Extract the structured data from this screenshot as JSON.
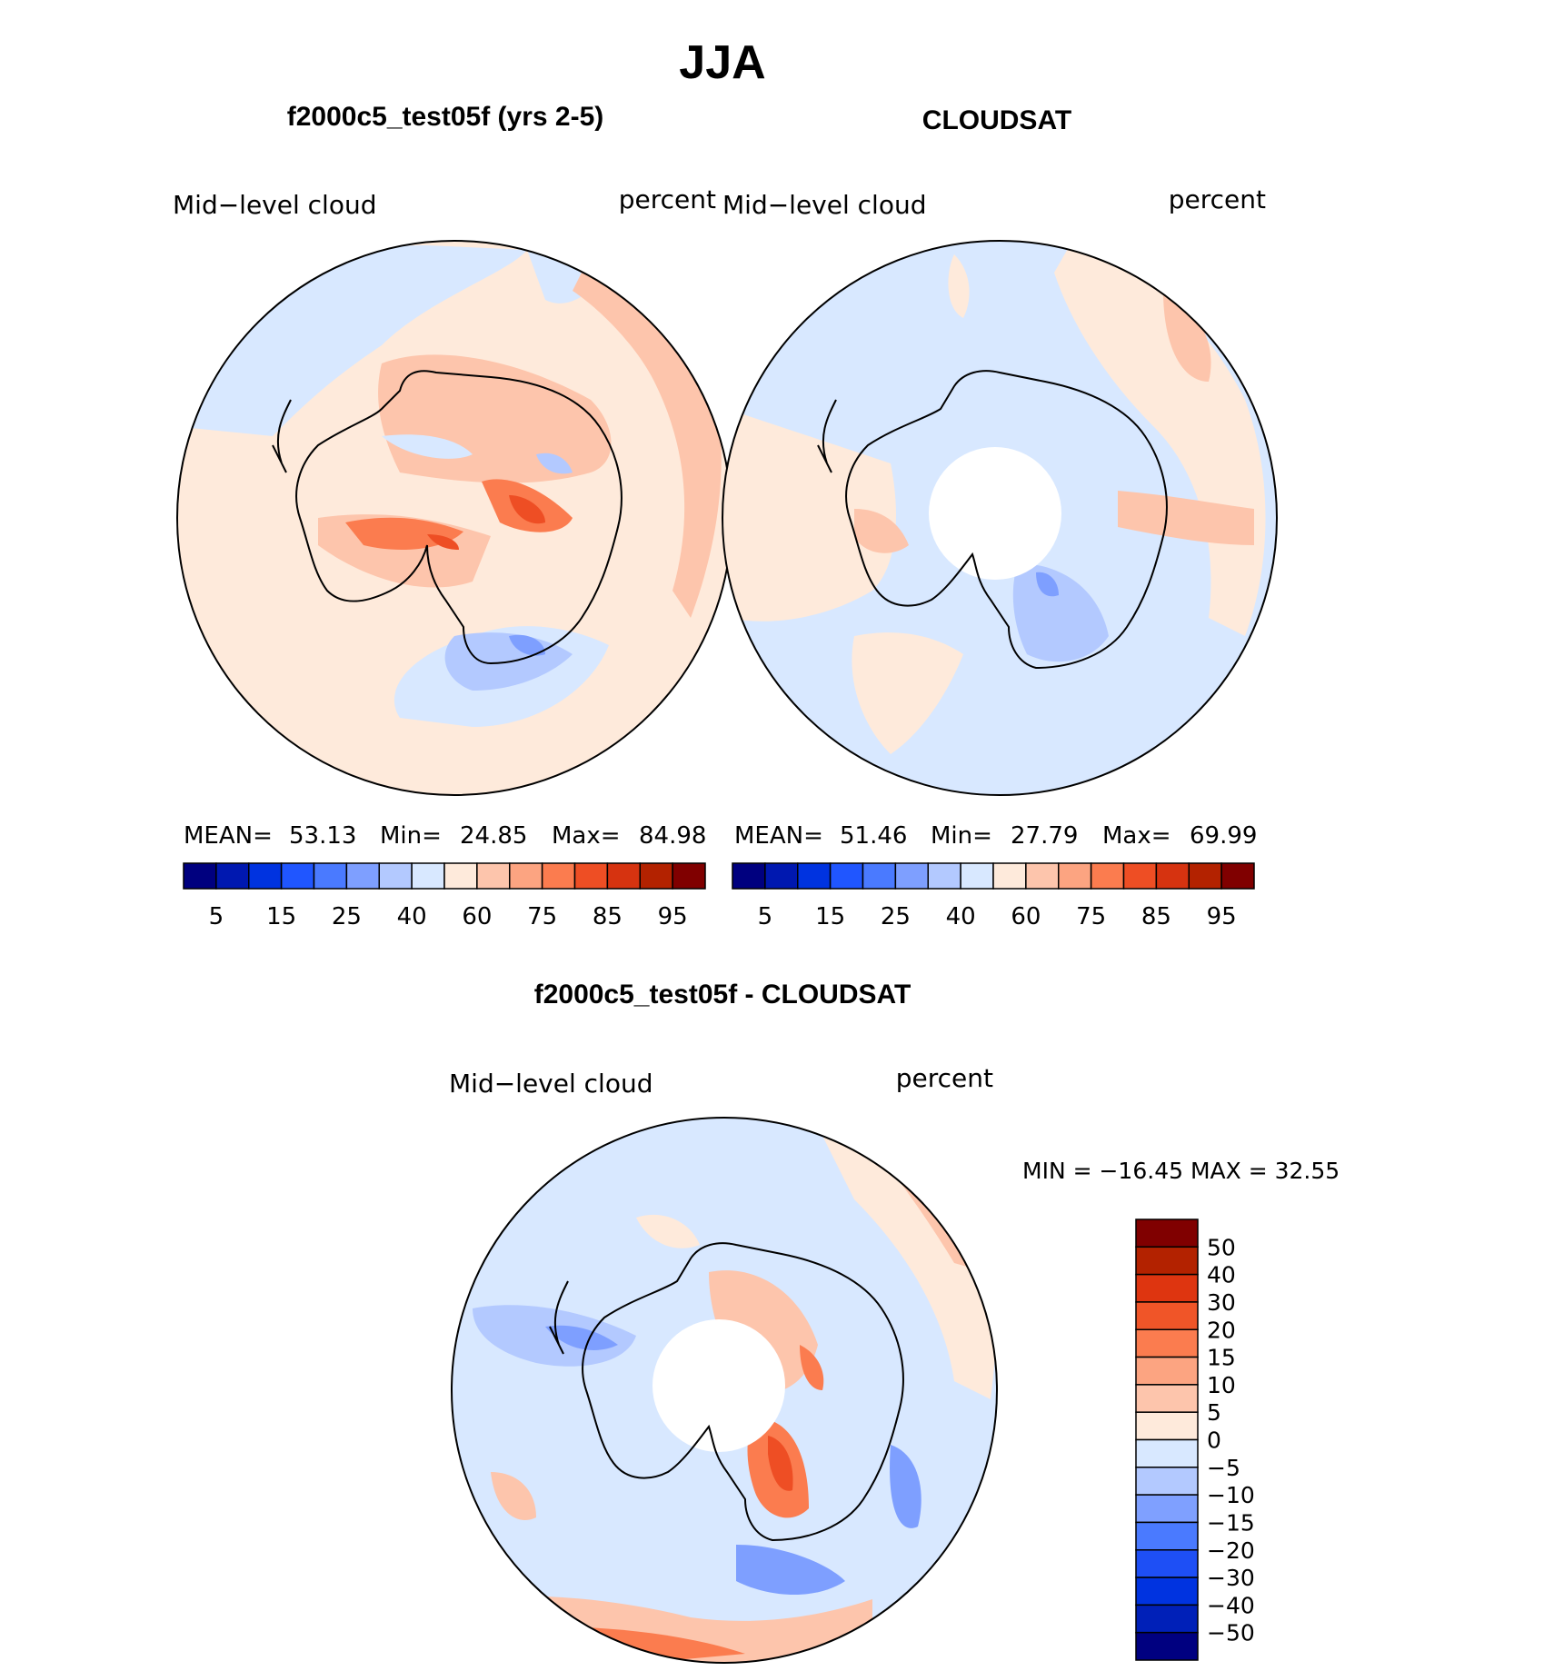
{
  "page_title": "JJA",
  "palette_seq": [
    "#00007f",
    "#0018b0",
    "#0033e0",
    "#2056ff",
    "#4a7aff",
    "#7e9fff",
    "#b3c9ff",
    "#d8e8ff",
    "#feeadb",
    "#fdc5ac",
    "#fca481",
    "#fb7c4f",
    "#ee4e24",
    "#d63310",
    "#b32200",
    "#800000"
  ],
  "palette_div": [
    "#000080",
    "#0020b8",
    "#0033e0",
    "#1e4ff5",
    "#4a7aff",
    "#7fa0ff",
    "#b3c9ff",
    "#d8e8ff",
    "#feeadb",
    "#fdc5ac",
    "#fca481",
    "#fb7c4f",
    "#f05528",
    "#de3510",
    "#b32200",
    "#800000"
  ],
  "panels": [
    {
      "title": "f2000c5_test05f (yrs 2-5)",
      "var_label": "Mid−level cloud",
      "units": "percent",
      "stats": {
        "mean_label": "MEAN=",
        "mean": "53.13",
        "min_label": "Min=",
        "min": "24.85",
        "max_label": "Max=",
        "max": "84.98"
      },
      "colorbar_ticks": [
        "5",
        "15",
        "25",
        "40",
        "60",
        "75",
        "85",
        "95"
      ]
    },
    {
      "title": "CLOUDSAT",
      "var_label": "Mid−level cloud",
      "units": "percent",
      "stats": {
        "mean_label": "MEAN=",
        "mean": "51.46",
        "min_label": "Min=",
        "min": "27.79",
        "max_label": "Max=",
        "max": "69.99"
      },
      "colorbar_ticks": [
        "5",
        "15",
        "25",
        "40",
        "60",
        "75",
        "85",
        "95"
      ]
    }
  ],
  "diff_panel": {
    "title": "f2000c5_test05f - CLOUDSAT",
    "var_label": "Mid−level cloud",
    "units": "percent",
    "minmax": "MIN = −16.45 MAX =   32.55",
    "colorbar_ticks": [
      "50",
      "40",
      "30",
      "20",
      "15",
      "10",
      "5",
      "0",
      "−5",
      "−10",
      "−15",
      "−20",
      "−30",
      "−40",
      "−50"
    ]
  }
}
